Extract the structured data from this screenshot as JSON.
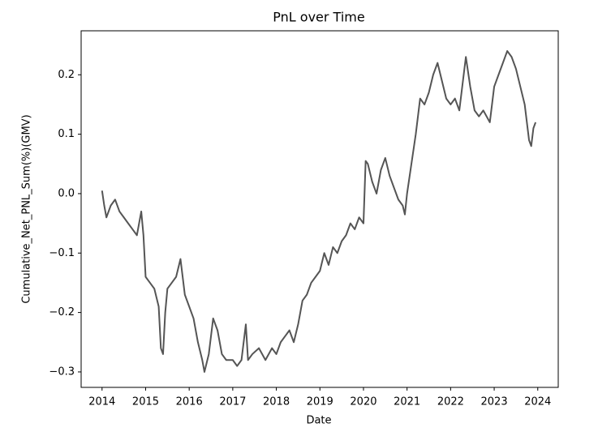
{
  "chart_data": {
    "type": "line",
    "title": "PnL over Time",
    "x_label": "Date",
    "y_label": "Cumulative_Net_PNL_Sum(%)(GMV)",
    "color": "#555555",
    "grid": false,
    "xlim": [
      2013.52,
      2024.47
    ],
    "ylim": [
      -0.326,
      0.274
    ],
    "xticks": [
      2014,
      2015,
      2016,
      2017,
      2018,
      2019,
      2020,
      2021,
      2022,
      2023,
      2024
    ],
    "yticks": [
      {
        "value": -0.3,
        "label": "−0.3"
      },
      {
        "value": -0.2,
        "label": "−0.2"
      },
      {
        "value": -0.1,
        "label": "−0.1"
      },
      {
        "value": 0,
        "label": "0.0"
      },
      0.1,
      0.2
    ],
    "x": [
      2014.0,
      2014.05,
      2014.1,
      2014.2,
      2014.3,
      2014.4,
      2014.5,
      2014.6,
      2014.7,
      2014.8,
      2014.85,
      2014.9,
      2014.95,
      2015.0,
      2015.1,
      2015.2,
      2015.3,
      2015.35,
      2015.4,
      2015.45,
      2015.5,
      2015.6,
      2015.7,
      2015.8,
      2015.9,
      2016.0,
      2016.1,
      2016.2,
      2016.3,
      2016.35,
      2016.45,
      2016.55,
      2016.65,
      2016.75,
      2016.85,
      2017.0,
      2017.1,
      2017.2,
      2017.3,
      2017.35,
      2017.45,
      2017.6,
      2017.75,
      2017.9,
      2018.0,
      2018.1,
      2018.2,
      2018.3,
      2018.4,
      2018.5,
      2018.6,
      2018.7,
      2018.8,
      2018.9,
      2019.0,
      2019.1,
      2019.2,
      2019.3,
      2019.4,
      2019.5,
      2019.6,
      2019.7,
      2019.8,
      2019.9,
      2020.0,
      2020.05,
      2020.1,
      2020.2,
      2020.3,
      2020.4,
      2020.5,
      2020.6,
      2020.7,
      2020.8,
      2020.9,
      2020.95,
      2021.0,
      2021.1,
      2021.2,
      2021.3,
      2021.4,
      2021.5,
      2021.6,
      2021.7,
      2021.8,
      2021.9,
      2022.0,
      2022.1,
      2022.2,
      2022.3,
      2022.35,
      2022.45,
      2022.55,
      2022.65,
      2022.75,
      2022.9,
      2023.0,
      2023.1,
      2023.2,
      2023.3,
      2023.4,
      2023.5,
      2023.6,
      2023.7,
      2023.8,
      2023.85,
      2023.9,
      2023.95
    ],
    "values": [
      0.005,
      -0.02,
      -0.04,
      -0.02,
      -0.01,
      -0.03,
      -0.04,
      -0.05,
      -0.06,
      -0.07,
      -0.05,
      -0.03,
      -0.07,
      -0.14,
      -0.15,
      -0.16,
      -0.19,
      -0.26,
      -0.27,
      -0.2,
      -0.16,
      -0.15,
      -0.14,
      -0.11,
      -0.17,
      -0.19,
      -0.21,
      -0.25,
      -0.28,
      -0.3,
      -0.27,
      -0.21,
      -0.23,
      -0.27,
      -0.28,
      -0.28,
      -0.29,
      -0.28,
      -0.22,
      -0.28,
      -0.27,
      -0.26,
      -0.28,
      -0.26,
      -0.27,
      -0.25,
      -0.24,
      -0.23,
      -0.25,
      -0.22,
      -0.18,
      -0.17,
      -0.15,
      -0.14,
      -0.13,
      -0.1,
      -0.12,
      -0.09,
      -0.1,
      -0.08,
      -0.07,
      -0.05,
      -0.06,
      -0.04,
      -0.05,
      0.055,
      0.05,
      0.02,
      0.0,
      0.04,
      0.06,
      0.03,
      0.01,
      -0.01,
      -0.02,
      -0.035,
      0.0,
      0.05,
      0.1,
      0.16,
      0.15,
      0.17,
      0.2,
      0.22,
      0.19,
      0.16,
      0.15,
      0.16,
      0.14,
      0.2,
      0.23,
      0.18,
      0.14,
      0.13,
      0.14,
      0.12,
      0.18,
      0.2,
      0.22,
      0.24,
      0.23,
      0.21,
      0.18,
      0.15,
      0.09,
      0.08,
      0.11,
      0.12
    ]
  }
}
